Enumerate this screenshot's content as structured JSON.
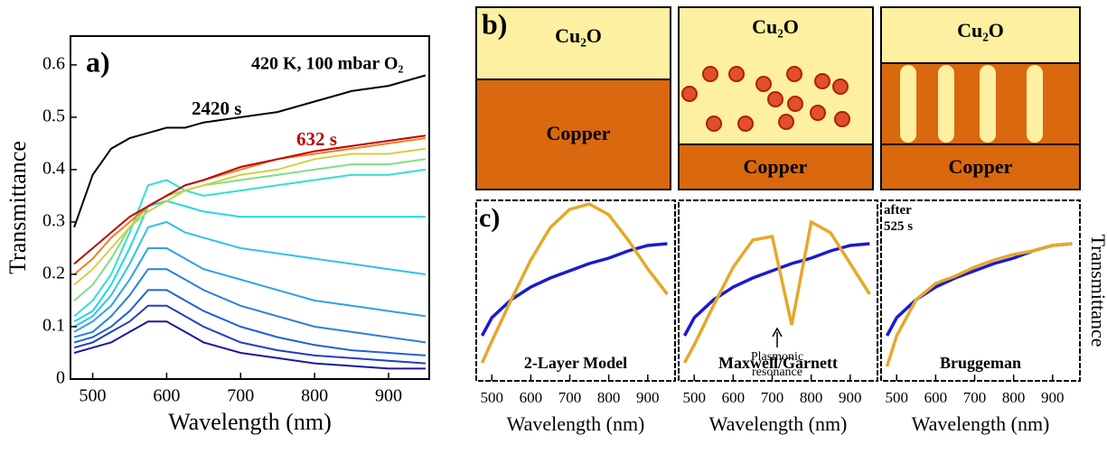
{
  "chart_data": [
    {
      "type": "line",
      "label": "a)",
      "annotation": "420 K, 100 mbar O₂",
      "xlabel": "Wavelength (nm)",
      "ylabel": "Transmittance",
      "x": [
        475,
        500,
        525,
        550,
        575,
        600,
        625,
        650,
        700,
        750,
        800,
        850,
        900,
        950
      ],
      "xlim": [
        470,
        955
      ],
      "xticks": [
        500,
        600,
        700,
        800,
        900
      ],
      "ylim": [
        0,
        0.655
      ],
      "yticks": [
        0,
        0.1,
        0.2,
        0.3,
        0.4,
        0.5,
        0.6
      ],
      "series": [
        {
          "color": "#1a1aa0",
          "values": [
            0.05,
            0.06,
            0.07,
            0.09,
            0.11,
            0.11,
            0.09,
            0.07,
            0.05,
            0.04,
            0.03,
            0.025,
            0.02,
            0.02
          ]
        },
        {
          "color": "#1f3fc4",
          "values": [
            0.06,
            0.07,
            0.09,
            0.11,
            0.14,
            0.14,
            0.12,
            0.1,
            0.07,
            0.055,
            0.045,
            0.04,
            0.035,
            0.03
          ]
        },
        {
          "color": "#2060d8",
          "values": [
            0.07,
            0.08,
            0.1,
            0.13,
            0.17,
            0.17,
            0.15,
            0.13,
            0.1,
            0.08,
            0.065,
            0.055,
            0.05,
            0.045
          ]
        },
        {
          "color": "#2a80e0",
          "values": [
            0.08,
            0.09,
            0.12,
            0.16,
            0.21,
            0.21,
            0.19,
            0.17,
            0.14,
            0.12,
            0.1,
            0.09,
            0.08,
            0.07
          ]
        },
        {
          "color": "#30a0e8",
          "values": [
            0.09,
            0.11,
            0.14,
            0.19,
            0.25,
            0.25,
            0.23,
            0.21,
            0.19,
            0.17,
            0.15,
            0.14,
            0.13,
            0.12
          ]
        },
        {
          "color": "#30c0f0",
          "values": [
            0.1,
            0.12,
            0.16,
            0.22,
            0.29,
            0.3,
            0.28,
            0.27,
            0.25,
            0.24,
            0.23,
            0.22,
            0.21,
            0.2
          ]
        },
        {
          "color": "#20d8e8",
          "values": [
            0.11,
            0.13,
            0.18,
            0.25,
            0.33,
            0.34,
            0.33,
            0.32,
            0.31,
            0.31,
            0.31,
            0.31,
            0.31,
            0.31
          ]
        },
        {
          "color": "#30e0d0",
          "values": [
            0.12,
            0.15,
            0.2,
            0.28,
            0.37,
            0.38,
            0.36,
            0.35,
            0.36,
            0.37,
            0.38,
            0.39,
            0.39,
            0.4
          ]
        },
        {
          "color": "#80e080",
          "values": [
            0.15,
            0.18,
            0.23,
            0.29,
            0.33,
            0.35,
            0.36,
            0.37,
            0.38,
            0.39,
            0.4,
            0.41,
            0.41,
            0.42
          ]
        },
        {
          "color": "#d0d040",
          "values": [
            0.18,
            0.21,
            0.25,
            0.29,
            0.32,
            0.34,
            0.36,
            0.37,
            0.39,
            0.4,
            0.42,
            0.43,
            0.43,
            0.44
          ]
        },
        {
          "color": "#f08020",
          "values": [
            0.2,
            0.23,
            0.27,
            0.3,
            0.33,
            0.35,
            0.37,
            0.38,
            0.4,
            0.42,
            0.43,
            0.44,
            0.45,
            0.46
          ]
        },
        {
          "name": "632 s",
          "color": "#c00000",
          "values": [
            0.22,
            0.25,
            0.28,
            0.31,
            0.33,
            0.35,
            0.37,
            0.38,
            0.405,
            0.42,
            0.435,
            0.445,
            0.455,
            0.465
          ]
        },
        {
          "name": "2420 s",
          "color": "#000000",
          "values": [
            0.29,
            0.39,
            0.44,
            0.46,
            0.47,
            0.48,
            0.48,
            0.49,
            0.5,
            0.51,
            0.53,
            0.55,
            0.56,
            0.58
          ]
        }
      ]
    },
    {
      "type": "line",
      "label": "c)",
      "title": "2-Layer Model",
      "xlabel": "Wavelength (nm)",
      "x": [
        475,
        500,
        550,
        600,
        650,
        700,
        750,
        800,
        850,
        900,
        950
      ],
      "xlim": [
        460,
        970
      ],
      "xticks": [
        500,
        600,
        700,
        800,
        900
      ],
      "ylim": [
        0,
        1
      ],
      "series": [
        {
          "color": "#1a1ad0",
          "values": [
            0.25,
            0.35,
            0.45,
            0.52,
            0.57,
            0.61,
            0.65,
            0.68,
            0.72,
            0.75,
            0.76
          ]
        },
        {
          "color": "#e6a82a",
          "values": [
            0.1,
            0.22,
            0.45,
            0.67,
            0.85,
            0.95,
            0.98,
            0.92,
            0.78,
            0.62,
            0.48
          ]
        }
      ]
    },
    {
      "type": "line",
      "title": "Maxwell/Garnett",
      "annotation": "Plasmonic resonance",
      "xlabel": "Wavelength (nm)",
      "x": [
        475,
        500,
        550,
        600,
        650,
        700,
        750,
        800,
        850,
        900,
        950
      ],
      "xlim": [
        460,
        970
      ],
      "xticks": [
        500,
        600,
        700,
        800,
        900
      ],
      "ylim": [
        0,
        1
      ],
      "series": [
        {
          "color": "#1a1ad0",
          "values": [
            0.25,
            0.35,
            0.45,
            0.52,
            0.57,
            0.61,
            0.65,
            0.68,
            0.72,
            0.75,
            0.76
          ]
        },
        {
          "color": "#e6a82a",
          "values": [
            0.1,
            0.2,
            0.42,
            0.63,
            0.78,
            0.8,
            0.31,
            0.88,
            0.82,
            0.65,
            0.48
          ]
        }
      ]
    },
    {
      "type": "line",
      "title": "Bruggeman",
      "annotation": "after 525 s",
      "xlabel": "Wavelength (nm)",
      "ylabel": "Transmittance",
      "x": [
        475,
        500,
        550,
        600,
        650,
        700,
        750,
        800,
        850,
        900,
        950
      ],
      "xlim": [
        460,
        970
      ],
      "xticks": [
        500,
        600,
        700,
        800,
        900
      ],
      "ylim": [
        0,
        1
      ],
      "series": [
        {
          "color": "#1a1ad0",
          "values": [
            0.25,
            0.35,
            0.45,
            0.52,
            0.57,
            0.61,
            0.65,
            0.68,
            0.72,
            0.75,
            0.76
          ]
        },
        {
          "color": "#e6a82a",
          "values": [
            0.08,
            0.25,
            0.45,
            0.54,
            0.58,
            0.63,
            0.67,
            0.7,
            0.72,
            0.75,
            0.76
          ]
        }
      ]
    }
  ],
  "diagram": {
    "label": "b)",
    "panels": [
      {
        "top": "Cu₂O",
        "bottom": "Copper"
      },
      {
        "top": "Cu₂O",
        "bottom": "Copper"
      },
      {
        "top": "Cu₂O",
        "bottom": "Copper"
      }
    ]
  }
}
